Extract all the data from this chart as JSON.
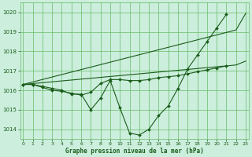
{
  "title": "Graphe pression niveau de la mer (hPa)",
  "background_color": "#cceedd",
  "grid_color": "#66bb66",
  "line_color": "#1a5c1a",
  "ylim": [
    1013.5,
    1020.5
  ],
  "xlim": [
    -0.3,
    23.3
  ],
  "yticks": [
    1014,
    1015,
    1016,
    1017,
    1018,
    1019,
    1020
  ],
  "xticks": [
    0,
    1,
    2,
    3,
    4,
    5,
    6,
    7,
    8,
    9,
    10,
    11,
    12,
    13,
    14,
    15,
    16,
    17,
    18,
    19,
    20,
    21,
    22,
    23
  ],
  "series": [
    {
      "x": [
        0,
        1,
        2,
        3,
        4,
        5,
        6,
        7,
        8,
        9,
        10,
        11,
        12,
        13,
        14,
        15,
        16,
        17,
        18,
        19,
        20,
        21
      ],
      "y": [
        1016.3,
        1016.3,
        1016.2,
        1016.1,
        1016.0,
        1015.8,
        1015.8,
        1015.0,
        1015.6,
        1016.5,
        1015.1,
        1013.8,
        1013.7,
        1014.0,
        1014.7,
        1015.2,
        1016.1,
        1017.1,
        1017.8,
        1018.5,
        1019.2,
        1019.9
      ],
      "has_markers": true
    },
    {
      "x": [
        0,
        1,
        2,
        3,
        4,
        5,
        6,
        7,
        8,
        9,
        10,
        11,
        12,
        13,
        14,
        15,
        16,
        17,
        18,
        19,
        20,
        21
      ],
      "y": [
        1016.3,
        1016.3,
        1016.15,
        1016.0,
        1015.95,
        1015.85,
        1015.75,
        1015.9,
        1016.35,
        1016.55,
        1016.55,
        1016.5,
        1016.5,
        1016.55,
        1016.65,
        1016.7,
        1016.75,
        1016.85,
        1016.95,
        1017.05,
        1017.15,
        1017.25
      ],
      "has_markers": true
    },
    {
      "x": [
        0,
        22,
        23
      ],
      "y": [
        1016.3,
        1019.1,
        1019.95
      ],
      "has_markers": false
    },
    {
      "x": [
        0,
        22,
        23
      ],
      "y": [
        1016.3,
        1017.3,
        1017.5
      ],
      "has_markers": false
    }
  ]
}
